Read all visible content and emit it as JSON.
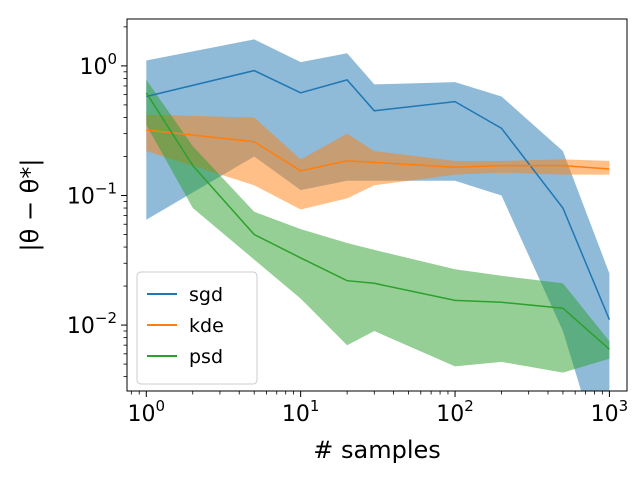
{
  "chart_data": {
    "type": "line",
    "xlabel": "# samples",
    "ylabel": "|θ − θ*|",
    "xscale": "log",
    "yscale": "log",
    "xlim": [
      0.75,
      1300
    ],
    "ylim": [
      0.0031,
      2.3
    ],
    "xticks": [
      {
        "value": 1,
        "base": "10",
        "exp": "0"
      },
      {
        "value": 10,
        "base": "10",
        "exp": "1"
      },
      {
        "value": 100,
        "base": "10",
        "exp": "2"
      },
      {
        "value": 1000,
        "base": "10",
        "exp": "3"
      }
    ],
    "yticks": [
      {
        "value": 1,
        "base": "10",
        "exp": "0"
      },
      {
        "value": 0.1,
        "base": "10",
        "exp": "−1"
      },
      {
        "value": 0.01,
        "base": "10",
        "exp": "−2"
      }
    ],
    "legend_position": "lower-left",
    "series": [
      {
        "name": "sgd",
        "color": "#1f77b4",
        "x": [
          1,
          5,
          10,
          20,
          30,
          100,
          200,
          500,
          1000
        ],
        "y": [
          0.58,
          0.92,
          0.62,
          0.78,
          0.45,
          0.53,
          0.33,
          0.08,
          0.011
        ],
        "lower": [
          0.065,
          0.2,
          0.11,
          0.13,
          0.13,
          0.13,
          0.1,
          0.009,
          0.0006
        ],
        "upper": [
          1.1,
          1.6,
          1.07,
          1.25,
          0.72,
          0.75,
          0.58,
          0.22,
          0.025
        ]
      },
      {
        "name": "kde",
        "color": "#ff7f0e",
        "x": [
          1,
          5,
          10,
          20,
          30,
          100,
          200,
          500,
          1000
        ],
        "y": [
          0.32,
          0.26,
          0.155,
          0.185,
          0.18,
          0.165,
          0.17,
          0.17,
          0.16
        ],
        "lower": [
          0.22,
          0.12,
          0.078,
          0.095,
          0.12,
          0.145,
          0.15,
          0.145,
          0.145
        ],
        "upper": [
          0.42,
          0.4,
          0.19,
          0.3,
          0.22,
          0.185,
          0.185,
          0.19,
          0.185
        ]
      },
      {
        "name": "psd",
        "color": "#2ca02c",
        "x": [
          1,
          2,
          5,
          10,
          20,
          30,
          100,
          200,
          500,
          1000
        ],
        "y": [
          0.62,
          0.17,
          0.05,
          0.033,
          0.022,
          0.021,
          0.0155,
          0.015,
          0.0135,
          0.0065
        ],
        "lower": [
          0.35,
          0.08,
          0.032,
          0.016,
          0.007,
          0.009,
          0.0048,
          0.0052,
          0.0043,
          0.0055
        ],
        "upper": [
          0.78,
          0.24,
          0.075,
          0.055,
          0.043,
          0.038,
          0.027,
          0.024,
          0.021,
          0.0075
        ]
      }
    ]
  }
}
